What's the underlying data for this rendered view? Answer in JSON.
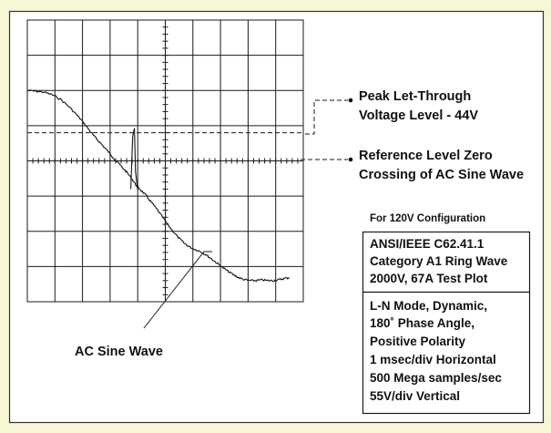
{
  "chart_data": {
    "type": "line",
    "title": "",
    "xlabel": "",
    "ylabel": "",
    "x_divisions": 10,
    "y_divisions": 8,
    "x_unit_per_div": "1 msec/div",
    "y_unit_per_div": "55V/div",
    "grid": true,
    "series": [
      {
        "name": "AC Sine Wave",
        "x_div": [
          0,
          0.3,
          0.6,
          0.9,
          1.2,
          1.5,
          1.8,
          2.0,
          2.2,
          2.4,
          2.6,
          2.8,
          3.0,
          3.2,
          3.4,
          3.6,
          3.8,
          3.95,
          4.1,
          4.3,
          4.5,
          4.7,
          4.9,
          5.1,
          5.3,
          5.5,
          5.7,
          5.9,
          6.1,
          6.3,
          6.5,
          6.7,
          6.9,
          7.1,
          7.3,
          7.5,
          7.7,
          7.9,
          8.1,
          8.3,
          8.5,
          8.7,
          8.9,
          9.1,
          9.3,
          9.5
        ],
        "y_div": [
          2.0,
          1.98,
          1.95,
          1.88,
          1.75,
          1.55,
          1.3,
          1.12,
          0.92,
          0.72,
          0.55,
          0.38,
          0.2,
          0.02,
          -0.15,
          -0.32,
          -0.52,
          -0.7,
          -0.82,
          -0.98,
          -1.18,
          -1.38,
          -1.6,
          -1.82,
          -2.02,
          -2.2,
          -2.35,
          -2.45,
          -2.52,
          -2.58,
          -2.68,
          -2.8,
          -2.92,
          -3.04,
          -3.15,
          -3.25,
          -3.33,
          -3.38,
          -3.4,
          -3.4,
          -3.38,
          -3.4,
          -3.4,
          -3.38,
          -3.34,
          -3.32
        ]
      }
    ],
    "spike": {
      "x_div": [
        3.75,
        3.82,
        3.88,
        3.92,
        3.97,
        4.0
      ],
      "y_div": [
        -0.8,
        0.7,
        0.93,
        -0.3,
        -0.65,
        -0.82
      ]
    },
    "reference_levels": [
      {
        "name": "Peak Let-Through Voltage Level - 44V",
        "y_div": 0.8,
        "style": "dashed"
      },
      {
        "name": "Reference Level Zero Crossing of AC Sine Wave",
        "y_div": 0,
        "style": "axis"
      }
    ]
  },
  "annotations": {
    "peak_line1": "Peak Let-Through",
    "peak_line2": "Voltage Level - 44V",
    "ref_line1": "Reference Level Zero",
    "ref_line2": "Crossing of AC Sine Wave",
    "sine_label": "AC Sine Wave"
  },
  "info": {
    "config_title": "For 120V Configuration",
    "box1": [
      "ANSI/IEEE C62.41.1",
      "Category A1 Ring Wave",
      "2000V, 67A Test Plot"
    ],
    "box2": [
      "L-N Mode, Dynamic,",
      "180˚ Phase Angle,",
      "Positive Polarity",
      "1 msec/div Horizontal",
      "500 Mega samples/sec",
      "55V/div Vertical"
    ]
  },
  "colors": {
    "background": "#f7f6d5",
    "ink": "#111111",
    "panel": "#ffffff"
  }
}
